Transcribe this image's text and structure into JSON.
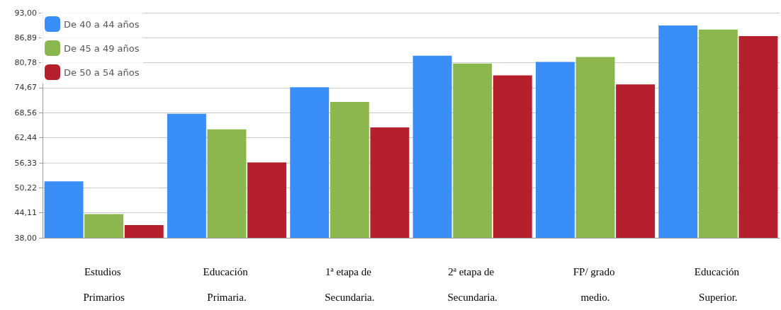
{
  "chart_data": {
    "type": "bar",
    "categories": [
      "Estudios Primarios",
      "Educación Primaria.",
      "1ª etapa de Secundaria.",
      "2ª etapa de Secundaria.",
      "FP/ grado medio.",
      "Educación Superior."
    ],
    "series": [
      {
        "name": "De 40 a 44 años",
        "color": "#3a8ef8",
        "values": [
          51.8,
          68.3,
          74.8,
          82.5,
          81.0,
          89.9
        ]
      },
      {
        "name": "De 45 a 49 años",
        "color": "#8bb74e",
        "values": [
          43.8,
          64.5,
          71.2,
          80.6,
          82.2,
          88.9
        ]
      },
      {
        "name": "De 50 a 54 años",
        "color": "#b5202c",
        "values": [
          41.1,
          56.4,
          65.0,
          77.7,
          75.5,
          87.3
        ]
      }
    ],
    "ylim": [
      38,
      93
    ],
    "yticks": [
      {
        "value": 38,
        "label": "38,00"
      },
      {
        "value": 44.11,
        "label": "44,11"
      },
      {
        "value": 50.22,
        "label": "50,22"
      },
      {
        "value": 56.33,
        "label": "56,33"
      },
      {
        "value": 62.44,
        "label": "62,44"
      },
      {
        "value": 68.56,
        "label": "68,56"
      },
      {
        "value": 74.67,
        "label": "74,67"
      },
      {
        "value": 80.78,
        "label": "80,78"
      },
      {
        "value": 86.89,
        "label": "86,89"
      },
      {
        "value": 93,
        "label": "93,00"
      }
    ],
    "grid": "y",
    "legend": "top left"
  }
}
